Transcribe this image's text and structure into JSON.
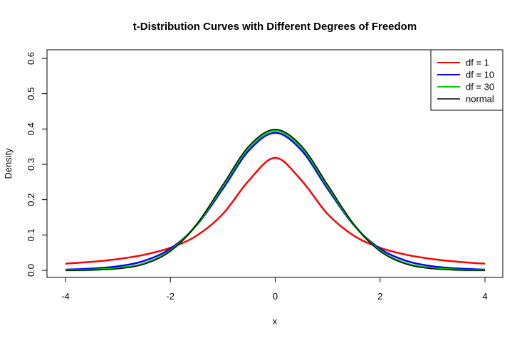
{
  "chart_data": {
    "type": "line",
    "title": "t-Distribution Curves with Different Degrees of Freedom",
    "xlabel": "x",
    "ylabel": "Density",
    "xlim": [
      -4,
      4
    ],
    "ylim": [
      0,
      0.6
    ],
    "x_ticks": [
      -4,
      -2,
      0,
      2,
      4
    ],
    "x_tick_labels": [
      "-4",
      "-2",
      "0",
      "2",
      "4"
    ],
    "y_ticks": [
      0,
      0.1,
      0.2,
      0.3,
      0.4,
      0.5,
      0.6
    ],
    "y_tick_labels": [
      "0.0",
      "0.1",
      "0.2",
      "0.3",
      "0.4",
      "0.5",
      "0.6"
    ],
    "grid": false,
    "legend_position": "top-right",
    "x": [
      -4,
      -3.5,
      -3,
      -2.5,
      -2,
      -1.5,
      -1,
      -0.5,
      0,
      0.5,
      1,
      1.5,
      2,
      2.5,
      3,
      3.5,
      4
    ],
    "series": [
      {
        "name": "df = 1",
        "color": "#ff0000",
        "values": [
          0.0187,
          0.024,
          0.0318,
          0.0439,
          0.0637,
          0.0979,
          0.1592,
          0.2546,
          0.3183,
          0.2546,
          0.1592,
          0.0979,
          0.0637,
          0.0439,
          0.0318,
          0.024,
          0.0187
        ]
      },
      {
        "name": "df = 10",
        "color": "#0000ff",
        "values": [
          0.002,
          0.005,
          0.0114,
          0.0269,
          0.0611,
          0.1274,
          0.2304,
          0.3397,
          0.3891,
          0.3397,
          0.2304,
          0.1274,
          0.0611,
          0.0269,
          0.0114,
          0.005,
          0.002
        ]
      },
      {
        "name": "df = 30",
        "color": "#00cc00",
        "values": [
          0.0004,
          0.0016,
          0.0059,
          0.0191,
          0.0554,
          0.129,
          0.2386,
          0.3484,
          0.3956,
          0.3484,
          0.2386,
          0.129,
          0.0554,
          0.0191,
          0.0059,
          0.0016,
          0.0004
        ]
      },
      {
        "name": "normal",
        "color": "#000000",
        "values": [
          0.0001,
          0.0009,
          0.0044,
          0.0175,
          0.054,
          0.1295,
          0.242,
          0.3521,
          0.3989,
          0.3521,
          0.242,
          0.1295,
          0.054,
          0.0175,
          0.0044,
          0.0009,
          0.0001
        ]
      }
    ]
  }
}
